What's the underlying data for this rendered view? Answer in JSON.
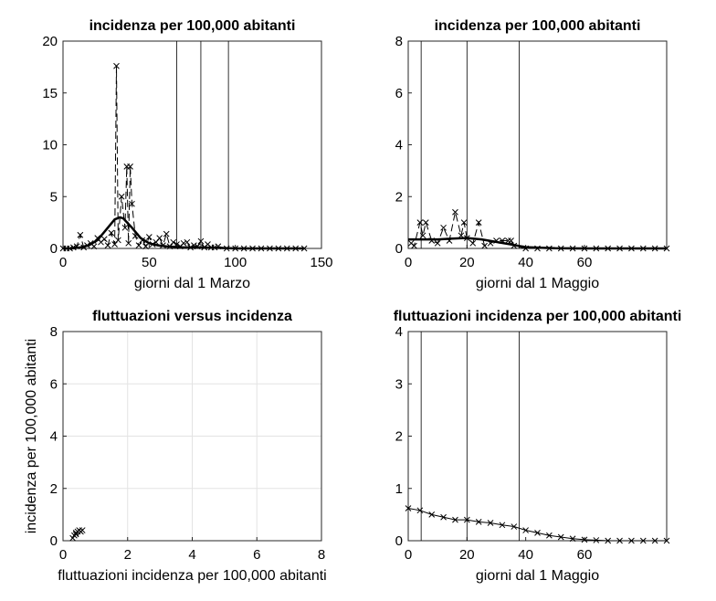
{
  "chart_data": [
    {
      "type": "line",
      "title": "incidenza per 100,000 abitanti",
      "x_label": "giorni dal 1 Marzo",
      "xlim": [
        0,
        150
      ],
      "xticks": [
        0,
        50,
        100,
        150
      ],
      "ylim": [
        0,
        20
      ],
      "yticks": [
        0,
        5,
        10,
        15,
        20
      ],
      "grid": false,
      "vlines": [
        66,
        80,
        96
      ],
      "series": [
        {
          "color": "#000000",
          "line": "dashed",
          "marker": "x",
          "x": [
            0,
            2,
            4,
            6,
            8,
            10,
            12,
            14,
            16,
            18,
            20,
            22,
            24,
            26,
            28,
            30,
            31,
            32,
            34,
            36,
            37,
            38,
            39,
            40,
            42,
            44,
            46,
            48,
            50,
            52,
            54,
            56,
            58,
            60,
            62,
            64,
            66,
            68,
            70,
            72,
            74,
            76,
            78,
            80,
            82,
            84,
            86,
            88,
            90,
            95,
            100,
            105,
            110,
            115,
            120,
            125,
            130,
            135,
            140
          ],
          "values": [
            0,
            0,
            0,
            0.1,
            0.2,
            1.3,
            0.1,
            0.3,
            0.5,
            0.2,
            1.0,
            0.6,
            0.9,
            0.3,
            1.5,
            0.4,
            17.6,
            0.8,
            5.0,
            2.0,
            7.9,
            0.5,
            7.9,
            4.3,
            1.2,
            0.3,
            0.8,
            0.2,
            1.1,
            0.4,
            0.6,
            1.0,
            0.3,
            1.4,
            0.2,
            0.6,
            0.4,
            0.2,
            0.5,
            0.6,
            0.1,
            0.3,
            0.2,
            0.7,
            0.1,
            0.4,
            0.1,
            0.1,
            0.2,
            0,
            0,
            0,
            0,
            0,
            0,
            0,
            0,
            0,
            0
          ]
        },
        {
          "color": "#000000",
          "line": "solid-thick",
          "marker": "none",
          "x": [
            0,
            5,
            10,
            15,
            20,
            25,
            30,
            33,
            35,
            40,
            45,
            50,
            55,
            60,
            70,
            80,
            90,
            100,
            120,
            140
          ],
          "values": [
            0,
            0,
            0.1,
            0.3,
            0.8,
            1.8,
            2.8,
            3.0,
            2.9,
            2.0,
            1.0,
            0.5,
            0.3,
            0.2,
            0.1,
            0.1,
            0.05,
            0,
            0,
            0
          ]
        }
      ]
    },
    {
      "type": "line",
      "title": "incidenza per 100,000 abitanti",
      "x_label": "giorni dal 1 Maggio",
      "xlim": [
        0,
        88
      ],
      "xticks": [
        0,
        20,
        40,
        60
      ],
      "ylim": [
        0,
        8
      ],
      "yticks": [
        0,
        2,
        4,
        6,
        8
      ],
      "grid": false,
      "vlines": [
        4.4,
        20,
        37.8
      ],
      "series": [
        {
          "color": "#000000",
          "line": "dashed",
          "marker": "x",
          "x": [
            1,
            2,
            4,
            5,
            6,
            8,
            10,
            12,
            14,
            16,
            18,
            19,
            20,
            22,
            24,
            26,
            28,
            30,
            32,
            34,
            35,
            36,
            40,
            44,
            48,
            52,
            56,
            60,
            64,
            68,
            72,
            76,
            80,
            84,
            88
          ],
          "values": [
            0.2,
            0.1,
            1.0,
            0.5,
            1.0,
            0.3,
            0.2,
            0.8,
            0.3,
            1.4,
            0.5,
            1.0,
            0.4,
            0.2,
            1.0,
            0.1,
            0.2,
            0.3,
            0.3,
            0.3,
            0.3,
            0.1,
            0,
            0,
            0,
            0,
            0,
            0,
            0,
            0,
            0,
            0,
            0,
            0,
            0
          ]
        },
        {
          "color": "#000000",
          "line": "solid-thick",
          "marker": "none",
          "x": [
            0,
            5,
            10,
            15,
            20,
            25,
            30,
            35,
            40,
            50,
            60,
            70,
            88
          ],
          "values": [
            0.35,
            0.35,
            0.35,
            0.38,
            0.4,
            0.35,
            0.25,
            0.15,
            0.05,
            0.01,
            0,
            0,
            0
          ]
        }
      ]
    },
    {
      "type": "scatter",
      "title": "fluttuazioni versus incidenza",
      "x_label": "fluttuazioni incidenza per 100,000 abitanti",
      "y_label": "incidenza per 100,000 abitanti",
      "xlim": [
        0,
        8
      ],
      "xticks": [
        0,
        2,
        4,
        6,
        8
      ],
      "ylim": [
        0,
        8
      ],
      "yticks": [
        0,
        2,
        4,
        6,
        8
      ],
      "grid": true,
      "series": [
        {
          "color": "#000000",
          "line": "none",
          "marker": "x",
          "x": [
            0.3,
            0.35,
            0.4,
            0.45,
            0.5,
            0.55,
            0.6,
            0.4
          ],
          "values": [
            0.1,
            0.2,
            0.3,
            0.35,
            0.4,
            0.35,
            0.4,
            0.25
          ]
        }
      ]
    },
    {
      "type": "line",
      "title": "fluttuazioni incidenza per 100,000 abitanti",
      "x_label": "giorni dal 1 Maggio",
      "xlim": [
        0,
        88
      ],
      "xticks": [
        0,
        20,
        40,
        60
      ],
      "ylim": [
        0,
        4
      ],
      "yticks": [
        0,
        1,
        2,
        3,
        4
      ],
      "grid": false,
      "vlines": [
        4.4,
        20,
        37.8
      ],
      "series": [
        {
          "color": "#000000",
          "line": "solid",
          "marker": "x",
          "x": [
            0,
            4,
            8,
            12,
            16,
            20,
            24,
            28,
            32,
            36,
            40,
            44,
            48,
            52,
            56,
            60,
            64,
            68,
            72,
            76,
            80,
            84,
            88
          ],
          "values": [
            0.62,
            0.58,
            0.5,
            0.45,
            0.4,
            0.4,
            0.36,
            0.34,
            0.3,
            0.27,
            0.2,
            0.15,
            0.1,
            0.07,
            0.04,
            0.02,
            0.01,
            0,
            0,
            0,
            0,
            0,
            0
          ]
        }
      ]
    }
  ]
}
